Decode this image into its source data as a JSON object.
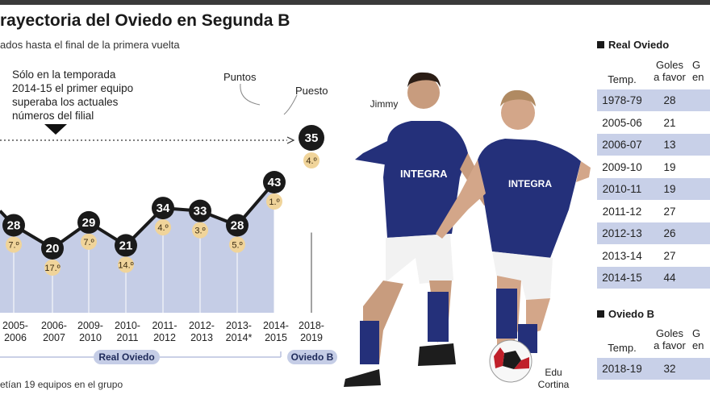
{
  "header": {
    "title": "rayectoria del Oviedo en Segunda B",
    "subtitle": "ados hasta el final de la primera vuelta"
  },
  "annotation": "Sólo en la temporada 2014-15 el primer equipo superaba los actuales números del filial",
  "footnote": "etían 19 equipos en el grupo",
  "players": {
    "left": "Jimmy",
    "right_line1": "Edu",
    "right_line2": "Cortina"
  },
  "chart_data": {
    "type": "line",
    "categories": [
      "2005-\n2006",
      "2006-\n2007",
      "2009-\n2010",
      "2010-\n2011",
      "2011-\n2012",
      "2012-\n2013",
      "2013-\n2014*",
      "2014-\n2015"
    ],
    "series": [
      {
        "name": "Puntos",
        "values": [
          28,
          20,
          29,
          21,
          34,
          33,
          28,
          43
        ]
      },
      {
        "name": "Puesto",
        "values": [
          "7.º",
          "17.º",
          "7.º",
          "14.º",
          "4.º",
          "3.º",
          "5.º",
          "1.º"
        ]
      }
    ],
    "filial": {
      "category": "2018-\n2019",
      "points": 35,
      "position": "4.º"
    },
    "annotations": {
      "points_label": "Puntos",
      "position_label": "Puesto"
    },
    "group_labels": {
      "first_team": "Real Oviedo",
      "reserve": "Oviedo B"
    },
    "area_color": "#c5cde6",
    "marker_color": "#1a1a1a",
    "position_badge_color": "#f0d49a"
  },
  "tables": {
    "real_oviedo": {
      "title": "Real Oviedo",
      "headers": [
        "Temp.",
        "Goles\na favor",
        "G\nen"
      ],
      "rows": [
        [
          "1978-79",
          "28"
        ],
        [
          "2005-06",
          "21"
        ],
        [
          "2006-07",
          "13"
        ],
        [
          "2009-10",
          "19"
        ],
        [
          "2010-11",
          "19"
        ],
        [
          "2011-12",
          "27"
        ],
        [
          "2012-13",
          "26"
        ],
        [
          "2013-14",
          "27"
        ],
        [
          "2014-15",
          "44"
        ]
      ]
    },
    "oviedo_b": {
      "title": "Oviedo B",
      "headers": [
        "Temp.",
        "Goles\na favor",
        "G\nen"
      ],
      "rows": [
        [
          "2018-19",
          "32"
        ]
      ]
    }
  }
}
